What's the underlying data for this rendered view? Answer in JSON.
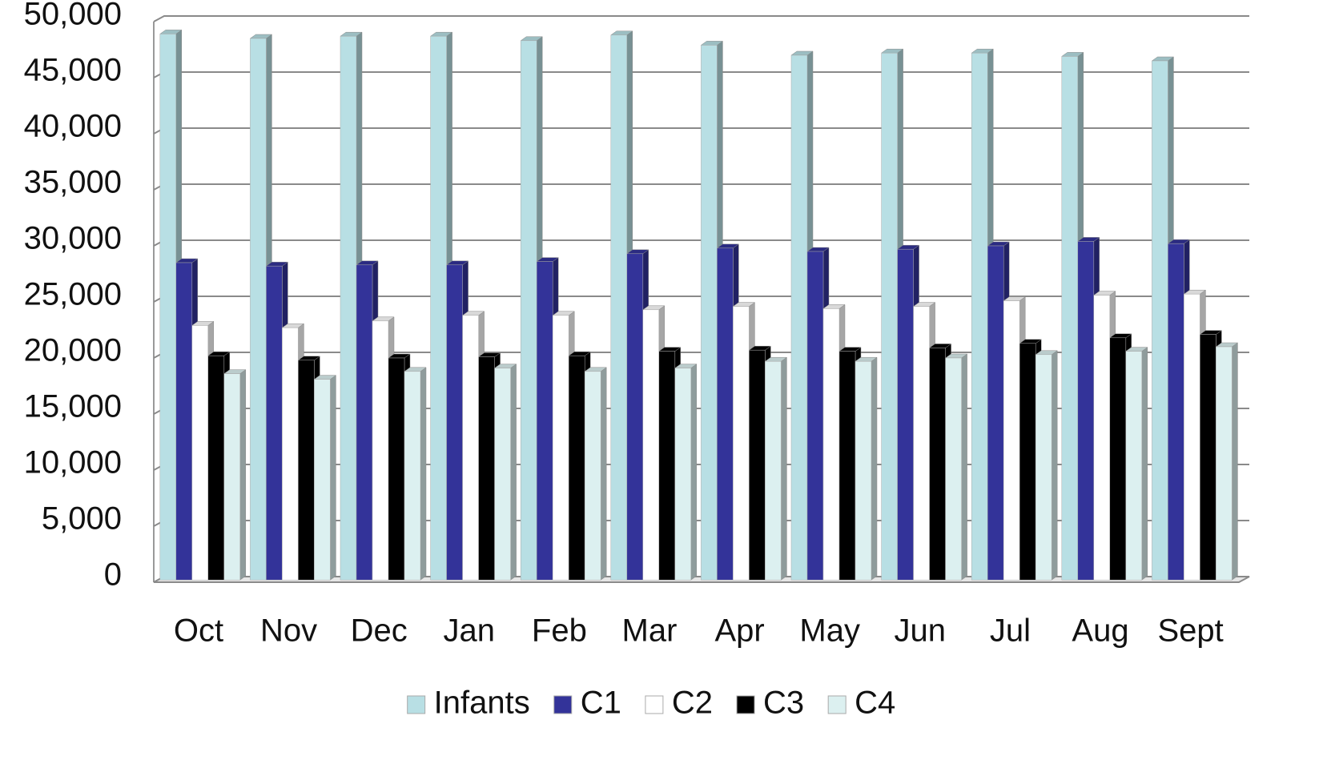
{
  "chart_data": {
    "type": "bar",
    "categories": [
      "Oct",
      "Nov",
      "Dec",
      "Jan",
      "Feb",
      "Mar",
      "Apr",
      "May",
      "Jun",
      "Jul",
      "Aug",
      "Sept"
    ],
    "series": [
      {
        "name": "Infants",
        "color": "#b8dfe4",
        "values": [
          48700,
          48300,
          48500,
          48500,
          48100,
          48600,
          47700,
          46800,
          47000,
          47000,
          46700,
          46300
        ]
      },
      {
        "name": "C1",
        "color": "#333399",
        "values": [
          28300,
          28000,
          28100,
          28100,
          28400,
          29100,
          29600,
          29300,
          29500,
          29800,
          30200,
          30000
        ]
      },
      {
        "name": "C2",
        "color": "#ffffff",
        "values": [
          22700,
          22500,
          23100,
          23600,
          23600,
          24100,
          24400,
          24200,
          24400,
          24900,
          25400,
          25500
        ]
      },
      {
        "name": "C3",
        "color": "#000000",
        "values": [
          20000,
          19600,
          19800,
          19900,
          20000,
          20400,
          20500,
          20400,
          20700,
          21100,
          21600,
          21900
        ]
      },
      {
        "name": "C4",
        "color": "#dcf0f0",
        "values": [
          18400,
          17900,
          18600,
          18900,
          18600,
          18900,
          19500,
          19500,
          19800,
          20100,
          20400,
          20800
        ]
      }
    ],
    "ylim": [
      0,
      50000
    ],
    "yticks": [
      0,
      {
        "value": 5000,
        "label": "5,000"
      },
      {
        "value": 10000,
        "label": "10,000"
      },
      {
        "value": 15000,
        "label": "15,000"
      },
      {
        "value": 20000,
        "label": "20,000"
      },
      {
        "value": 25000,
        "label": "25,000"
      },
      {
        "value": 30000,
        "label": "30,000"
      },
      {
        "value": 35000,
        "label": "35,000"
      },
      {
        "value": 40000,
        "label": "40,000"
      },
      {
        "value": 45000,
        "label": "45,000"
      },
      {
        "value": 50000,
        "label": "50,000"
      }
    ],
    "grid": true,
    "legend": "bottom"
  }
}
